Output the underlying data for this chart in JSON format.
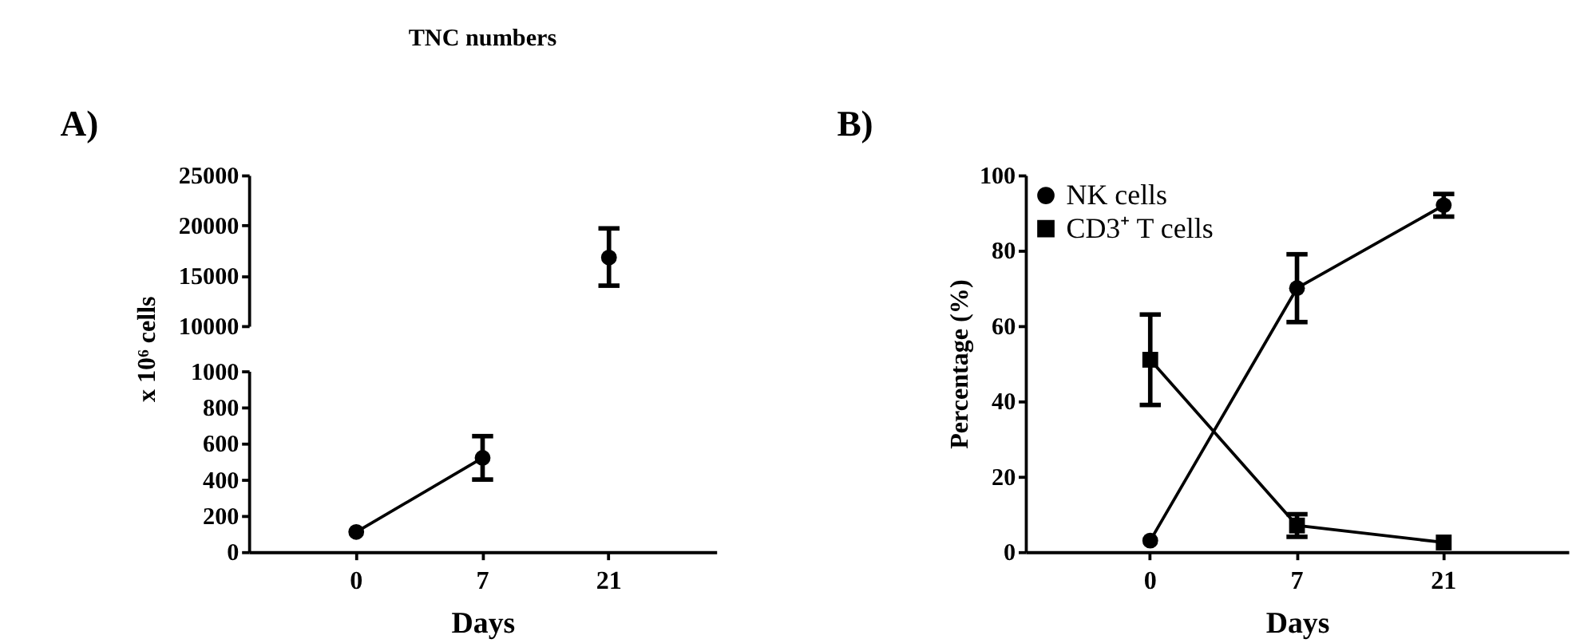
{
  "chart_data": [
    {
      "type": "line",
      "title": "TNC numbers",
      "annotations": [
        "A)"
      ],
      "categories": [
        "0",
        "7",
        "21"
      ],
      "marker": "circle",
      "grid": false,
      "tick_labels": "y",
      "series": [
        {
          "color": "#000000",
          "values": [
            null,
            null,
            16800
          ],
          "errors": [
            null,
            null,
            [
              14000,
              19700
            ]
          ]
        }
      ],
      "ylim": [
        10000,
        25000
      ],
      "yticks": [
        10000,
        15000,
        20000,
        25000
      ]
    },
    {
      "type": "line",
      "xlabel": "Days",
      "ylabel": "x 10⁶ cells",
      "categories": [
        "0",
        "7",
        "21"
      ],
      "marker": "circle",
      "grid": false,
      "series": [
        {
          "color": "#000000",
          "values": [
            110,
            520,
            null
          ],
          "errors": [
            null,
            [
              400,
              640
            ],
            null
          ]
        }
      ],
      "ylim": [
        0,
        1000
      ],
      "yticks": [
        0,
        200,
        400,
        600,
        800,
        1000
      ]
    },
    {
      "type": "line",
      "xlabel": "Days",
      "ylabel": "Percentage (%)",
      "annotations": [
        "B)"
      ],
      "categories": [
        "0",
        "7",
        "21"
      ],
      "grid": false,
      "legend": "top left",
      "series": [
        {
          "name": "NK cells",
          "color": "#000000",
          "marker": "circle",
          "values": [
            3,
            70,
            92
          ],
          "errors": [
            null,
            [
              61,
              79
            ],
            [
              89,
              95
            ]
          ]
        },
        {
          "name": "CD3⁺ T cells",
          "color": "#000000",
          "marker": "square",
          "values": [
            51,
            7,
            2.5
          ],
          "errors": [
            [
              39,
              63
            ],
            [
              4,
              10
            ],
            null
          ]
        }
      ],
      "ylim": [
        0,
        100
      ],
      "yticks": [
        0,
        20,
        40,
        60,
        80,
        100
      ]
    }
  ]
}
